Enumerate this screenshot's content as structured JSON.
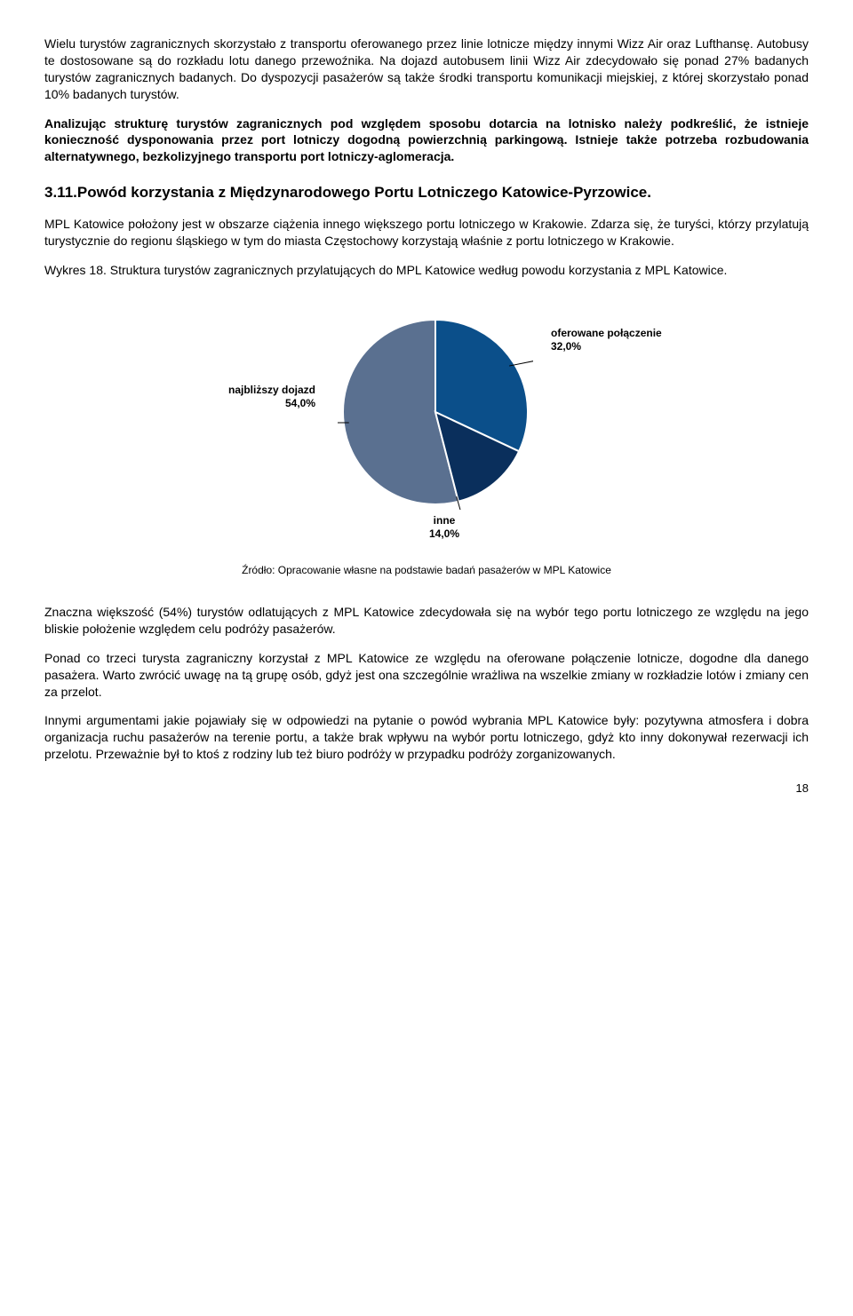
{
  "para1": "Wielu turystów zagranicznych skorzystało z transportu oferowanego przez linie lotnicze między innymi Wizz Air oraz Lufthansę. Autobusy te dostosowane są do rozkładu lotu danego przewoźnika. Na dojazd autobusem linii Wizz Air zdecydowało się ponad 27% badanych turystów zagranicznych badanych. Do dyspozycji pasażerów są także środki transportu komunikacji miejskiej, z której skorzystało ponad 10% badanych turystów.",
  "para2": "Analizując strukturę turystów zagranicznych pod względem sposobu dotarcia na lotnisko należy podkreślić, że istnieje konieczność dysponowania przez port lotniczy dogodną powierzchnią parkingową. Istnieje także potrzeba rozbudowania alternatywnego, bezkolizyjnego transportu port lotniczy-aglomeracja.",
  "heading": "3.11.Powód korzystania z  Międzynarodowego Portu Lotniczego Katowice-Pyrzowice.",
  "para3": "MPL Katowice położony jest w obszarze ciążenia innego większego portu lotniczego w Krakowie. Zdarza się, że turyści, którzy przylatują turystycznie do regionu śląskiego w tym do miasta Częstochowy korzystają właśnie z portu lotniczego w Krakowie.",
  "figcap_lead": "Wykres 18. ",
  "figcap_body": "Struktura turystów zagranicznych przylatujących do MPL Katowice według powodu korzystania z MPL Katowice.",
  "chart": {
    "type": "pie",
    "slices": [
      {
        "label_line1": "najbliższy dojazd",
        "label_line2": "54,0%",
        "value": 54.0,
        "color": "#5a7090"
      },
      {
        "label_line1": "oferowane połączenie",
        "label_line2": "32,0%",
        "value": 32.0,
        "color": "#0b4f8a"
      },
      {
        "label_line1": "inne",
        "label_line2": "14,0%",
        "value": 14.0,
        "color": "#0a2f5c"
      }
    ],
    "stroke_color": "#ffffff",
    "stroke_width": 2,
    "label_fontsize": 12,
    "label_fontweight": "bold",
    "background_color": "#ffffff",
    "leader_color": "#000000"
  },
  "source": "Źródło: Opracowanie własne na podstawie badań pasażerów w MPL Katowice",
  "para4": "Znaczna większość (54%) turystów odlatujących z MPL Katowice zdecydowała się na wybór tego portu lotniczego ze względu na jego bliskie położenie względem celu podróży pasażerów.",
  "para5": "Ponad co trzeci turysta zagraniczny korzystał z MPL Katowice ze względu na oferowane połączenie lotnicze, dogodne dla danego pasażera. Warto zwrócić uwagę na tą grupę osób, gdyż jest ona szczególnie wrażliwa na wszelkie zmiany w rozkładzie lotów i zmiany cen za przelot.",
  "para6": "Innymi argumentami jakie pojawiały się w odpowiedzi na pytanie o powód wybrania MPL Katowice były: pozytywna atmosfera i dobra organizacja ruchu pasażerów na terenie portu, a także brak wpływu na wybór portu lotniczego, gdyż kto inny dokonywał rezerwacji ich przelotu. Przeważnie był to ktoś z rodziny lub też biuro podróży w przypadku podróży zorganizowanych.",
  "page_number": "18"
}
